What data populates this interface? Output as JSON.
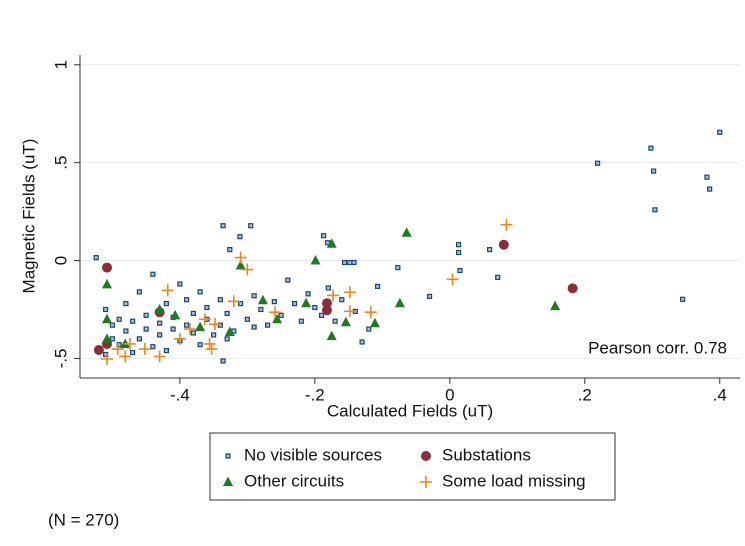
{
  "chart_data": {
    "type": "scatter",
    "xlabel": "Calculated Fields (uT)",
    "ylabel": "Magnetic Fields (uT)",
    "xlim": [
      -0.548,
      0.43
    ],
    "ylim": [
      -0.6,
      1.05
    ],
    "xticks": [
      {
        "value": -0.4,
        "label": "-.4"
      },
      {
        "value": -0.2,
        "label": "-.2"
      },
      0,
      {
        "value": 0.2,
        "label": ".2"
      },
      {
        "value": 0.4,
        "label": ".4"
      }
    ],
    "yticks": [
      {
        "value": -0.5,
        "label": "-.5"
      },
      0,
      {
        "value": 0.5,
        "label": ".5"
      },
      1
    ],
    "grid": true,
    "legend": "bottom",
    "annotation": "Pearson corr. 0.78",
    "note": "(N = 270)",
    "series": [
      {
        "name": "No visible sources",
        "color": "#1a476f",
        "marker": "square",
        "x": [
          0.4,
          0.298,
          0.219,
          0.302,
          0.381,
          0.385,
          0.304,
          0.345,
          0.013,
          0.013,
          0.059,
          0.071,
          -0.03,
          0.015,
          -0.077,
          -0.107,
          -0.13,
          -0.156,
          -0.148,
          -0.142,
          -0.187,
          -0.181,
          -0.295,
          -0.311,
          -0.326,
          -0.336,
          -0.336,
          -0.524,
          -0.52,
          -0.51,
          -0.5,
          -0.5,
          -0.49,
          -0.49,
          -0.48,
          -0.47,
          -0.47,
          -0.46,
          -0.45,
          -0.45,
          -0.44,
          -0.43,
          -0.43,
          -0.42,
          -0.42,
          -0.41,
          -0.41,
          -0.4,
          -0.4,
          -0.39,
          -0.39,
          -0.38,
          -0.38,
          -0.37,
          -0.36,
          -0.36,
          -0.35,
          -0.34,
          -0.34,
          -0.33,
          -0.32,
          -0.31,
          -0.3,
          -0.29,
          -0.28,
          -0.27,
          -0.26,
          -0.25,
          -0.24,
          -0.23,
          -0.22,
          -0.21,
          -0.2,
          -0.19,
          -0.18,
          -0.17,
          -0.16,
          -0.14,
          -0.12,
          -0.44,
          -0.48,
          -0.51,
          -0.46,
          -0.37,
          -0.33,
          -0.29
        ],
        "values": [
          0.655,
          0.574,
          0.497,
          0.457,
          0.426,
          0.365,
          0.259,
          -0.198,
          0.081,
          0.041,
          0.056,
          -0.086,
          -0.183,
          -0.051,
          -0.036,
          -0.132,
          -0.416,
          -0.01,
          -0.01,
          -0.01,
          0.127,
          0.091,
          0.178,
          0.122,
          0.056,
          0.178,
          -0.513,
          0.015,
          -0.45,
          -0.48,
          -0.4,
          -0.33,
          -0.3,
          -0.43,
          -0.36,
          -0.47,
          -0.31,
          -0.4,
          -0.35,
          -0.28,
          -0.44,
          -0.32,
          -0.38,
          -0.22,
          -0.46,
          -0.29,
          -0.35,
          -0.41,
          -0.12,
          -0.2,
          -0.33,
          -0.37,
          -0.27,
          -0.43,
          -0.3,
          -0.24,
          -0.38,
          -0.33,
          -0.2,
          -0.27,
          -0.36,
          -0.22,
          -0.3,
          -0.18,
          -0.25,
          -0.33,
          -0.21,
          -0.28,
          -0.1,
          -0.22,
          -0.31,
          -0.17,
          -0.24,
          -0.28,
          -0.14,
          -0.31,
          -0.2,
          -0.26,
          -0.35,
          -0.07,
          -0.22,
          -0.25,
          -0.16,
          -0.16,
          -0.4,
          -0.34
        ]
      },
      {
        "name": "Substations",
        "color": "#8c2d3a",
        "marker": "circle",
        "x": [
          -0.508,
          -0.508,
          -0.52,
          -0.43,
          -0.182,
          -0.182,
          0.08,
          0.182
        ],
        "values": [
          -0.036,
          -0.426,
          -0.457,
          -0.264,
          -0.254,
          -0.218,
          0.081,
          -0.142
        ]
      },
      {
        "name": "Other circuits",
        "color": "#1f7a24",
        "marker": "triangle",
        "x": [
          -0.508,
          -0.508,
          -0.508,
          -0.43,
          -0.407,
          -0.326,
          -0.31,
          -0.277,
          -0.256,
          -0.213,
          -0.199,
          -0.175,
          -0.175,
          -0.154,
          -0.111,
          -0.074,
          -0.064,
          0.156,
          -0.481,
          -0.37
        ],
        "values": [
          -0.122,
          -0.3,
          -0.4,
          -0.25,
          -0.28,
          -0.365,
          -0.025,
          -0.203,
          -0.3,
          -0.218,
          0.0,
          0.086,
          -0.386,
          -0.315,
          -0.32,
          -0.218,
          0.142,
          -0.233,
          -0.426,
          -0.34
        ]
      },
      {
        "name": "Some load missing",
        "color": "#e8891d",
        "marker": "plus",
        "x": [
          -0.508,
          -0.492,
          -0.474,
          -0.452,
          -0.43,
          -0.418,
          -0.4,
          -0.363,
          -0.356,
          -0.353,
          -0.32,
          -0.31,
          -0.3,
          -0.259,
          -0.173,
          -0.148,
          -0.148,
          -0.117,
          0.004,
          0.084,
          -0.481,
          -0.385,
          -0.348
        ],
        "values": [
          -0.503,
          -0.452,
          -0.426,
          -0.452,
          -0.49,
          -0.152,
          -0.4,
          -0.3,
          -0.426,
          -0.452,
          -0.208,
          0.015,
          -0.046,
          -0.264,
          -0.178,
          -0.162,
          -0.259,
          -0.264,
          -0.096,
          0.183,
          -0.49,
          -0.35,
          -0.325
        ]
      }
    ]
  }
}
